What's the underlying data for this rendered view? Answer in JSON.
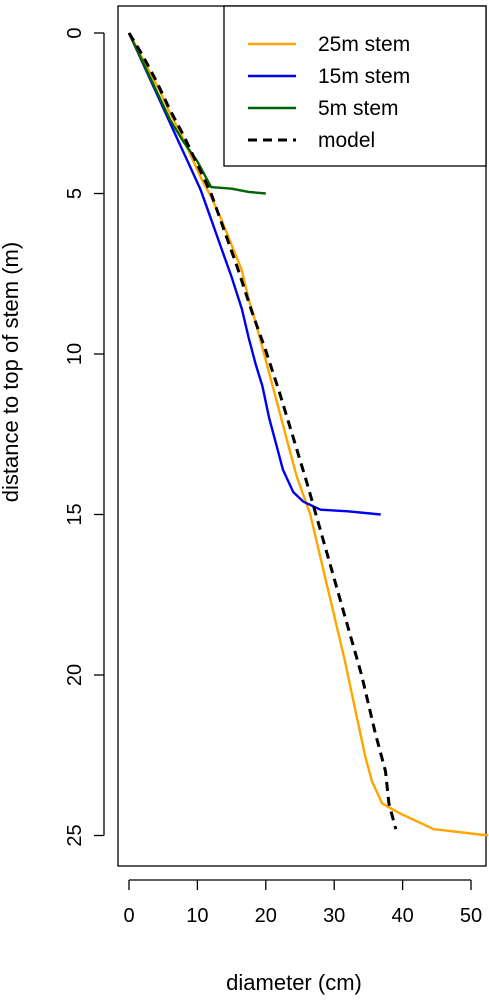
{
  "chart_data": {
    "type": "line",
    "xlabel": "diameter (cm)",
    "ylabel": "distance to top of stem (m)",
    "xlim": [
      0,
      53
    ],
    "ylim": [
      25,
      0
    ],
    "x_ticks": [
      0,
      10,
      20,
      30,
      40,
      50
    ],
    "y_ticks": [
      0,
      5,
      10,
      15,
      20,
      25
    ],
    "grid": false,
    "legend_position": "top-right",
    "series": [
      {
        "name": "25m stem",
        "color": "#FFA500",
        "style": "solid",
        "points": [
          [
            0,
            0
          ],
          [
            1.5,
            0.6
          ],
          [
            3,
            1.2
          ],
          [
            4.5,
            1.8
          ],
          [
            6,
            2.5
          ],
          [
            7.5,
            3.1
          ],
          [
            9,
            3.8
          ],
          [
            10.5,
            4.5
          ],
          [
            12,
            5.1
          ],
          [
            13.5,
            5.8
          ],
          [
            15,
            6.6
          ],
          [
            16.5,
            7.4
          ],
          [
            17.5,
            8.3
          ],
          [
            18.5,
            9.0
          ],
          [
            19.5,
            9.8
          ],
          [
            20.5,
            10.6
          ],
          [
            21.5,
            11.4
          ],
          [
            22.5,
            12.2
          ],
          [
            23.5,
            13.0
          ],
          [
            24.5,
            13.8
          ],
          [
            25.5,
            14.4
          ],
          [
            26.5,
            15.0
          ],
          [
            27.5,
            15.9
          ],
          [
            28.5,
            16.8
          ],
          [
            29.5,
            17.7
          ],
          [
            30.5,
            18.6
          ],
          [
            31.5,
            19.5
          ],
          [
            32.5,
            20.5
          ],
          [
            33.5,
            21.5
          ],
          [
            34.5,
            22.5
          ],
          [
            35.5,
            23.3
          ],
          [
            37,
            24.0
          ],
          [
            39.5,
            24.3
          ],
          [
            44.5,
            24.8
          ],
          [
            52.5,
            25.0
          ]
        ]
      },
      {
        "name": "15m stem",
        "color": "#0000EE",
        "style": "solid",
        "points": [
          [
            0,
            0
          ],
          [
            1.5,
            0.7
          ],
          [
            3,
            1.4
          ],
          [
            4.5,
            2.1
          ],
          [
            6,
            2.8
          ],
          [
            7.5,
            3.5
          ],
          [
            9,
            4.2
          ],
          [
            10.5,
            4.9
          ],
          [
            12,
            5.8
          ],
          [
            13.5,
            6.7
          ],
          [
            15,
            7.6
          ],
          [
            16.5,
            8.6
          ],
          [
            17.5,
            9.5
          ],
          [
            18.5,
            10.3
          ],
          [
            19.5,
            11.0
          ],
          [
            20.5,
            12.0
          ],
          [
            21.5,
            12.8
          ],
          [
            22.5,
            13.6
          ],
          [
            24,
            14.3
          ],
          [
            25.5,
            14.6
          ],
          [
            28,
            14.85
          ],
          [
            32,
            14.9
          ],
          [
            36.8,
            15.0
          ]
        ]
      },
      {
        "name": "5m stem",
        "color": "#006400",
        "style": "solid",
        "points": [
          [
            0,
            0
          ],
          [
            2,
            0.9
          ],
          [
            4,
            1.8
          ],
          [
            6,
            2.7
          ],
          [
            8,
            3.4
          ],
          [
            10,
            4.0
          ],
          [
            11,
            4.4
          ],
          [
            12,
            4.8
          ],
          [
            15,
            4.85
          ],
          [
            17.5,
            4.95
          ],
          [
            20,
            5.0
          ]
        ]
      },
      {
        "name": "model",
        "color": "#000000",
        "style": "dashed",
        "points": [
          [
            0,
            0
          ],
          [
            2,
            0.7
          ],
          [
            4,
            1.5
          ],
          [
            6,
            2.4
          ],
          [
            8,
            3.2
          ],
          [
            10,
            4.1
          ],
          [
            12,
            5.0
          ],
          [
            14,
            6.2
          ],
          [
            16,
            7.4
          ],
          [
            18,
            8.7
          ],
          [
            20,
            9.9
          ],
          [
            22,
            11.2
          ],
          [
            24,
            12.6
          ],
          [
            26,
            14.0
          ],
          [
            28,
            15.5
          ],
          [
            30,
            17.0
          ],
          [
            32,
            18.5
          ],
          [
            34,
            20.0
          ],
          [
            36,
            21.8
          ],
          [
            37.5,
            23.0
          ],
          [
            38,
            24.0
          ],
          [
            39,
            24.8
          ]
        ]
      }
    ]
  }
}
